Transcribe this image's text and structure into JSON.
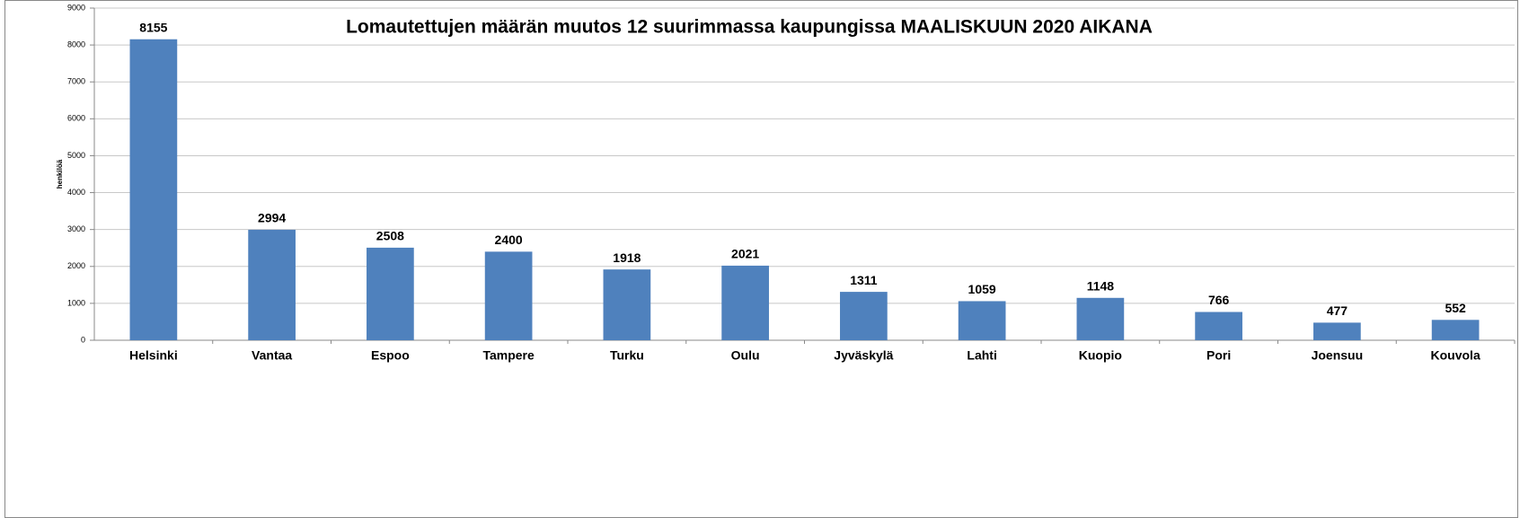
{
  "chart_data": {
    "type": "bar",
    "title": "Lomautettujen määrän muutos 12 suurimmassa kaupungissa MAALISKUUN 2020 AIKANA",
    "y_label": "henkilöä",
    "categories": [
      "Helsinki",
      "Vantaa",
      "Espoo",
      "Tampere",
      "Turku",
      "Oulu",
      "Jyväskylä",
      "Lahti",
      "Kuopio",
      "Pori",
      "Joensuu",
      "Kouvola"
    ],
    "values": [
      8155,
      2994,
      2508,
      2400,
      1918,
      2021,
      1311,
      1059,
      1148,
      766,
      477,
      552
    ],
    "color": "#4f81bd",
    "ylim": [
      0,
      9000
    ],
    "yticks": [
      0,
      1000,
      2000,
      3000,
      4000,
      5000,
      6000,
      7000,
      8000,
      9000
    ],
    "grid": true
  }
}
